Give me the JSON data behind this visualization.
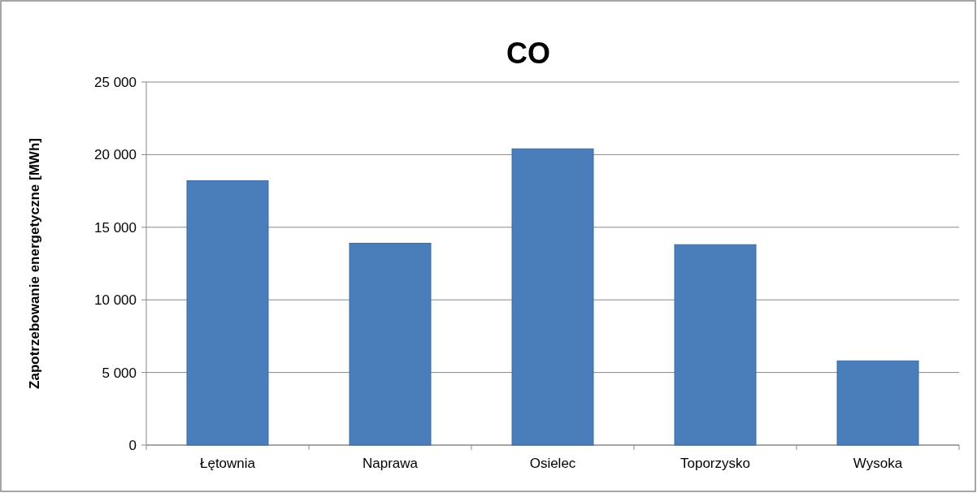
{
  "chart_data": {
    "type": "bar",
    "title": "CO",
    "ylabel": "Zapotrzebowanie energetyczne [MWh]",
    "categories": [
      "Łętownia",
      "Naprawa",
      "Osielec",
      "Toporzysko",
      "Wysoka"
    ],
    "values": [
      18200,
      13900,
      20400,
      13800,
      5800
    ],
    "color": "#4a7ebb",
    "ylim": [
      0,
      25000
    ],
    "yticks": [
      {
        "value": 0,
        "label": "0"
      },
      {
        "value": 5000,
        "label": "5 000"
      },
      {
        "value": 10000,
        "label": "10 000"
      },
      {
        "value": 15000,
        "label": "15 000"
      },
      {
        "value": 20000,
        "label": "20 000"
      },
      {
        "value": 25000,
        "label": "25 000"
      }
    ],
    "grid": "y"
  }
}
